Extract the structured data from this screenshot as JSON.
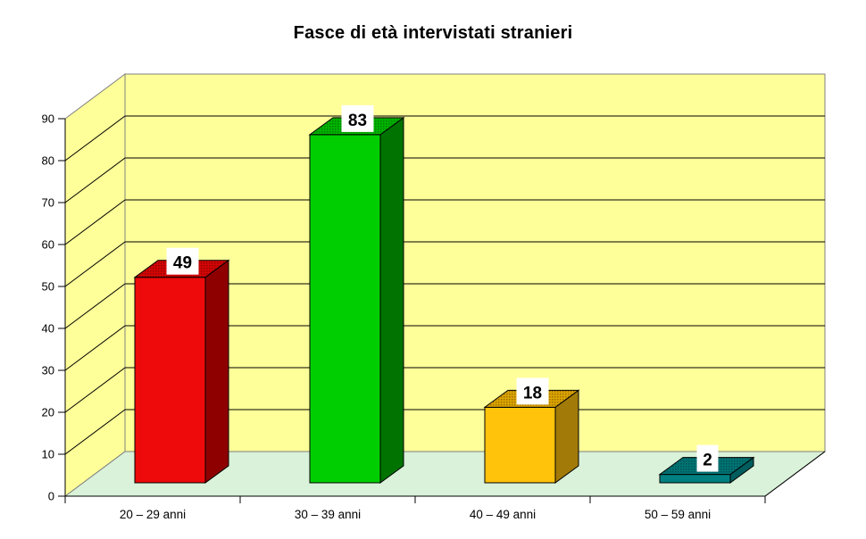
{
  "chart_data": {
    "type": "bar",
    "style": "3d-column",
    "title": "Fasce di età intervistati stranieri",
    "categories": [
      "20 – 29 anni",
      "30 – 39 anni",
      "40 – 49 anni",
      "50 – 59 anni"
    ],
    "values": [
      49,
      83,
      18,
      2
    ],
    "data_labels": [
      "49",
      "83",
      "18",
      "2"
    ],
    "xlabel": "",
    "ylabel": "",
    "ylim": [
      0,
      90
    ],
    "y_ticks": [
      0,
      10,
      20,
      30,
      40,
      50,
      60,
      70,
      80,
      90
    ],
    "grid": true,
    "legend": false,
    "colors": {
      "bars": [
        {
          "name": "red",
          "front": "#EE0A0A",
          "top": "#D40505",
          "side": "#8E0000"
        },
        {
          "name": "green",
          "front": "#00CE00",
          "top": "#00B400",
          "side": "#007300"
        },
        {
          "name": "gold",
          "front": "#FFC30B",
          "top": "#DDA400",
          "side": "#A17A08"
        },
        {
          "name": "teal",
          "front": "#008080",
          "top": "#007474",
          "side": "#005D5D"
        }
      ],
      "wall": "#FFFF99",
      "floor": "#D9F2D9",
      "gridline": "#000000",
      "wall_edge": "#808080",
      "axis": "#000000",
      "value_label_box": "#FFFFFF",
      "text": "#000000",
      "background": "#FFFFFF"
    }
  }
}
